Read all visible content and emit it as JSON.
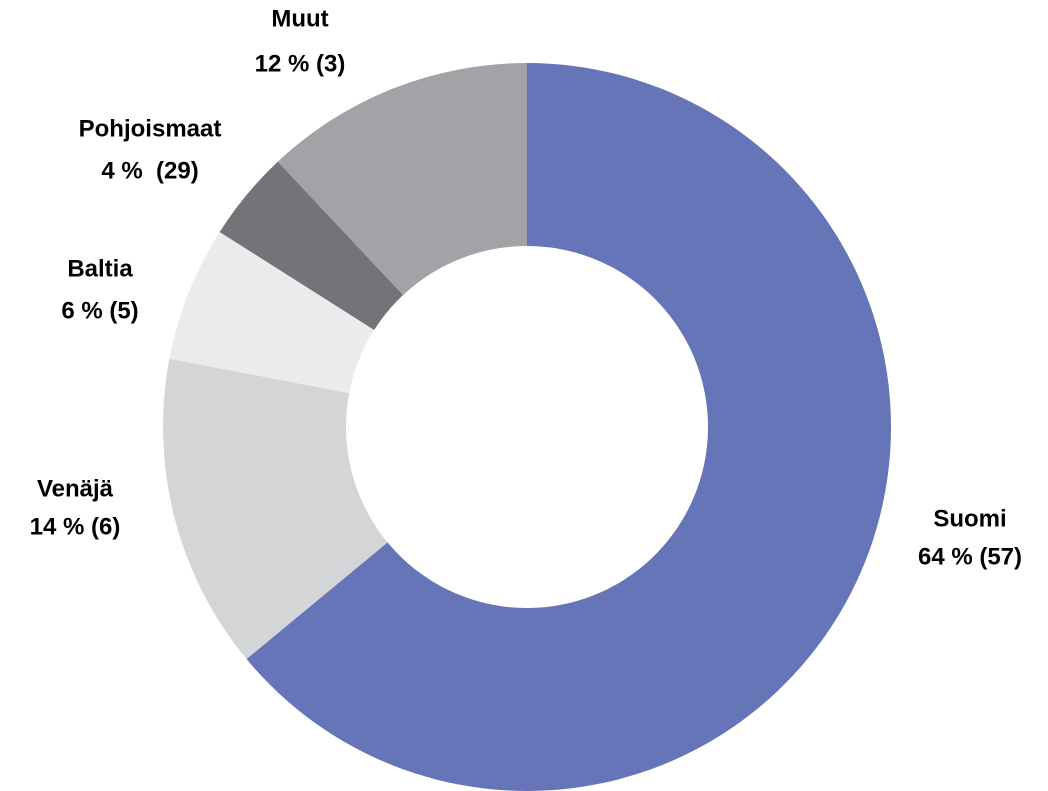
{
  "chart_data": {
    "type": "donut",
    "categories": [
      "Suomi",
      "Venäjä",
      "Baltia",
      "Pohjoismaat",
      "Muut"
    ],
    "values": [
      64,
      14,
      6,
      4,
      12
    ],
    "value_labels": [
      "64 % (57)",
      "14 % (6)",
      "6 % (5)",
      "4 %  (29)",
      "12 % (3)"
    ],
    "colors": [
      "#6674b8",
      "#d4d5d7",
      "#ebebed",
      "#757278",
      "#a3a2a7"
    ]
  }
}
